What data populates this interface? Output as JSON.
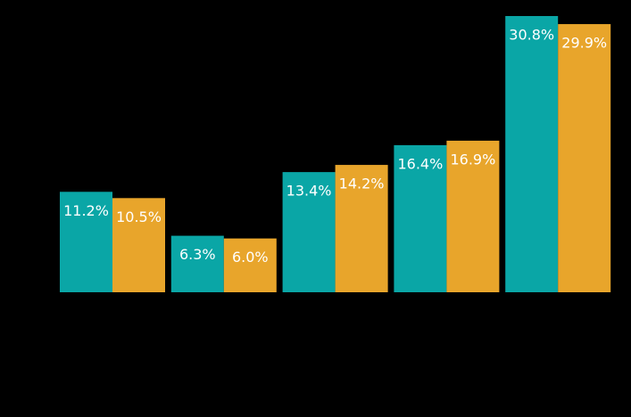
{
  "chart_data": {
    "type": "bar",
    "categories": [
      null,
      null,
      null,
      null,
      null
    ],
    "series": [
      {
        "color": "#0aa6a6",
        "values": [
          11.2,
          6.3,
          13.4,
          16.4,
          30.8
        ],
        "value_labels": [
          "11.2%",
          "6.3%",
          "13.4%",
          "16.4%",
          "30.8%"
        ]
      },
      {
        "color": "#e8a52b",
        "values": [
          10.5,
          6.0,
          14.2,
          16.9,
          29.9
        ],
        "value_labels": [
          "10.5%",
          "6.0%",
          "14.2%",
          "16.9%",
          "29.9%"
        ]
      }
    ]
  }
}
